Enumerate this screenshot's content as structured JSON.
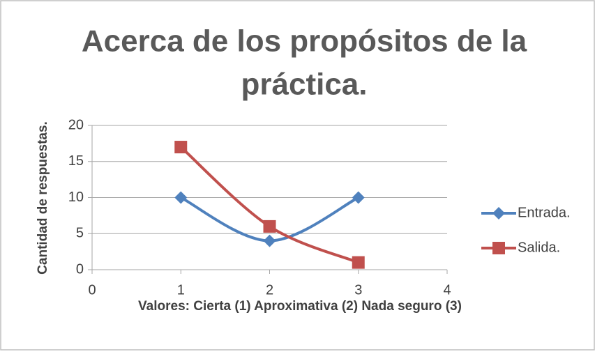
{
  "chart_data": {
    "type": "line",
    "title_lines": [
      "Acerca de los propósitos de la",
      "práctica."
    ],
    "x_label": "Valores: Cierta (1) Aproximativa (2) Nada seguro (3)",
    "y_label": "Cantidad de respuestas.",
    "x": [
      1,
      2,
      3
    ],
    "series": [
      {
        "name": "Entrada.",
        "color": "#4f81bd",
        "marker": "diamond",
        "values": [
          10,
          4,
          10
        ]
      },
      {
        "name": "Salida.",
        "color": "#c0504d",
        "marker": "square",
        "values": [
          17,
          6,
          1
        ]
      }
    ],
    "xlim": [
      0,
      4
    ],
    "xticks": [
      0,
      1,
      2,
      3,
      4
    ],
    "ylim": [
      0,
      20
    ],
    "yticks": [
      0,
      5,
      10,
      15,
      20
    ],
    "grid": true,
    "smooth": true,
    "legend": "right"
  }
}
